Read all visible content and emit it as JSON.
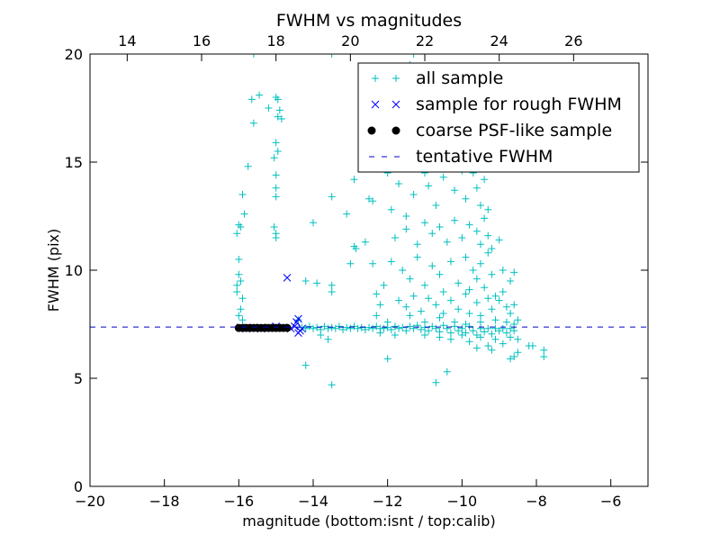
{
  "chart_data": {
    "type": "scatter",
    "title": "FWHM vs magnitudes",
    "xlabel": "magnitude (bottom:isnt / top:calib)",
    "ylabel": "FWHM (pix)",
    "xlim": [
      -20,
      -5
    ],
    "ylim": [
      0,
      20
    ],
    "top_xlim": [
      13,
      28
    ],
    "x_ticks": [
      -20,
      -18,
      -16,
      -14,
      -12,
      -10,
      -8,
      -6
    ],
    "x_tick_labels": [
      "−20",
      "−18",
      "−16",
      "−14",
      "−12",
      "−10",
      "−8",
      "−6"
    ],
    "top_x_ticks": [
      14,
      16,
      18,
      20,
      22,
      24,
      26
    ],
    "top_x_tick_labels": [
      "14",
      "16",
      "18",
      "20",
      "22",
      "24",
      "26"
    ],
    "y_ticks": [
      0,
      5,
      10,
      15,
      20
    ],
    "y_tick_labels": [
      "0",
      "5",
      "10",
      "15",
      "20"
    ],
    "grid": false,
    "legend_placement": "top-right",
    "colors": {
      "all": "#00bfbf",
      "rough": "#0000ff",
      "coarse": "#000000",
      "tentative": "#0000cc"
    },
    "series": [
      {
        "name": "all sample",
        "marker": "plus",
        "points": [
          [
            -16.0,
            12.1
          ],
          [
            -15.95,
            12.0
          ],
          [
            -16.05,
            11.7
          ],
          [
            -15.9,
            13.5
          ],
          [
            -15.85,
            12.6
          ],
          [
            -16.0,
            9.8
          ],
          [
            -15.95,
            9.5
          ],
          [
            -16.05,
            9.0
          ],
          [
            -15.9,
            8.7
          ],
          [
            -16.0,
            10.5
          ],
          [
            -15.95,
            8.2
          ],
          [
            -16.0,
            7.9
          ],
          [
            -15.9,
            7.7
          ],
          [
            -16.05,
            9.3
          ],
          [
            -15.75,
            14.8
          ],
          [
            -15.65,
            17.9
          ],
          [
            -15.6,
            16.8
          ],
          [
            -15.45,
            18.1
          ],
          [
            -15.2,
            17.5
          ],
          [
            -15.0,
            18.0
          ],
          [
            -14.95,
            17.9
          ],
          [
            -14.9,
            17.4
          ],
          [
            -14.95,
            17.1
          ],
          [
            -14.85,
            17.0
          ],
          [
            -15.0,
            15.9
          ],
          [
            -14.95,
            15.5
          ],
          [
            -15.05,
            15.2
          ],
          [
            -15.0,
            14.4
          ],
          [
            -15.0,
            13.8
          ],
          [
            -15.0,
            13.4
          ],
          [
            -15.05,
            12.0
          ],
          [
            -15.0,
            11.7
          ],
          [
            -15.0,
            11.5
          ],
          [
            -14.0,
            12.2
          ],
          [
            -14.2,
            9.5
          ],
          [
            -13.9,
            9.4
          ],
          [
            -13.5,
            9.3
          ],
          [
            -13.5,
            9.0
          ],
          [
            -14.4,
            7.7
          ],
          [
            -13.5,
            13.4
          ],
          [
            -12.9,
            14.2
          ],
          [
            -13.1,
            12.6
          ],
          [
            -12.5,
            13.3
          ],
          [
            -12.4,
            13.2
          ],
          [
            -12.9,
            11.1
          ],
          [
            -12.85,
            11.0
          ],
          [
            -13.0,
            10.3
          ],
          [
            -12.4,
            10.3
          ],
          [
            -12.6,
            11.3
          ],
          [
            -11.9,
            12.8
          ],
          [
            -12.1,
            9.3
          ],
          [
            -12.2,
            8.4
          ],
          [
            -12.3,
            8.9
          ],
          [
            -11.3,
            20.0
          ],
          [
            -11.4,
            19.5
          ],
          [
            -13.5,
            20.0
          ],
          [
            -15.6,
            20.0
          ],
          [
            -12.0,
            14.5
          ],
          [
            -11.5,
            15.6
          ],
          [
            -11.7,
            14.0
          ],
          [
            -11.5,
            12.5
          ],
          [
            -11.3,
            13.5
          ],
          [
            -11.0,
            14.5
          ],
          [
            -10.9,
            13.9
          ],
          [
            -10.7,
            13.0
          ],
          [
            -10.5,
            14.3
          ],
          [
            -10.3,
            15.0
          ],
          [
            -10.2,
            13.7
          ],
          [
            -10.0,
            14.6
          ],
          [
            -9.9,
            13.3
          ],
          [
            -9.7,
            14.5
          ],
          [
            -9.6,
            13.8
          ],
          [
            -9.5,
            13.0
          ],
          [
            -9.4,
            14.2
          ],
          [
            -9.3,
            12.8
          ],
          [
            -11.8,
            11.5
          ],
          [
            -11.5,
            11.9
          ],
          [
            -11.2,
            11.2
          ],
          [
            -11.0,
            12.2
          ],
          [
            -10.8,
            11.7
          ],
          [
            -10.6,
            12.0
          ],
          [
            -10.4,
            11.3
          ],
          [
            -10.2,
            12.3
          ],
          [
            -10.0,
            11.5
          ],
          [
            -9.8,
            12.1
          ],
          [
            -9.6,
            11.8
          ],
          [
            -9.5,
            11.2
          ],
          [
            -9.4,
            12.4
          ],
          [
            -9.3,
            11.6
          ],
          [
            -9.2,
            11.0
          ],
          [
            -9.0,
            11.4
          ],
          [
            -8.9,
            10.0
          ],
          [
            -8.7,
            9.5
          ],
          [
            -8.6,
            9.9
          ],
          [
            -11.9,
            10.4
          ],
          [
            -11.6,
            10.0
          ],
          [
            -11.4,
            9.6
          ],
          [
            -11.2,
            10.6
          ],
          [
            -11.0,
            9.3
          ],
          [
            -10.8,
            10.2
          ],
          [
            -10.6,
            9.8
          ],
          [
            -10.5,
            9.0
          ],
          [
            -10.3,
            10.4
          ],
          [
            -10.1,
            9.4
          ],
          [
            -9.9,
            10.6
          ],
          [
            -9.8,
            9.1
          ],
          [
            -9.7,
            10.0
          ],
          [
            -9.6,
            9.6
          ],
          [
            -9.5,
            10.3
          ],
          [
            -9.4,
            9.2
          ],
          [
            -9.3,
            10.8
          ],
          [
            -9.2,
            9.8
          ],
          [
            -9.1,
            8.8
          ],
          [
            -8.9,
            9.0
          ],
          [
            -11.7,
            8.6
          ],
          [
            -11.5,
            8.3
          ],
          [
            -11.3,
            8.8
          ],
          [
            -11.1,
            8.1
          ],
          [
            -10.9,
            8.7
          ],
          [
            -10.7,
            8.4
          ],
          [
            -10.5,
            8.0
          ],
          [
            -10.3,
            8.6
          ],
          [
            -10.1,
            8.2
          ],
          [
            -9.9,
            8.9
          ],
          [
            -9.8,
            8.0
          ],
          [
            -9.6,
            8.5
          ],
          [
            -9.5,
            7.9
          ],
          [
            -9.3,
            8.7
          ],
          [
            -9.2,
            8.2
          ],
          [
            -9.0,
            8.6
          ],
          [
            -8.8,
            8.3
          ],
          [
            -8.7,
            8.0
          ],
          [
            -8.6,
            8.4
          ],
          [
            -8.5,
            7.7
          ],
          [
            -12.3,
            7.9
          ],
          [
            -12.0,
            7.6
          ],
          [
            -11.4,
            7.9
          ],
          [
            -11.0,
            7.6
          ],
          [
            -10.6,
            7.8
          ],
          [
            -10.2,
            7.6
          ],
          [
            -9.9,
            7.5
          ],
          [
            -9.5,
            7.6
          ],
          [
            -9.1,
            7.7
          ],
          [
            -8.8,
            7.6
          ],
          [
            -8.6,
            7.5
          ],
          [
            -14.3,
            7.35
          ],
          [
            -14.2,
            7.3
          ],
          [
            -14.1,
            7.4
          ],
          [
            -14.0,
            7.3
          ],
          [
            -13.9,
            7.35
          ],
          [
            -13.8,
            7.25
          ],
          [
            -13.7,
            7.4
          ],
          [
            -13.6,
            7.3
          ],
          [
            -13.5,
            7.35
          ],
          [
            -13.4,
            7.3
          ],
          [
            -13.3,
            7.4
          ],
          [
            -13.2,
            7.25
          ],
          [
            -13.1,
            7.35
          ],
          [
            -13.0,
            7.3
          ],
          [
            -12.9,
            7.4
          ],
          [
            -12.8,
            7.3
          ],
          [
            -12.7,
            7.35
          ],
          [
            -12.6,
            7.25
          ],
          [
            -12.5,
            7.35
          ],
          [
            -12.4,
            7.3
          ],
          [
            -12.3,
            7.4
          ],
          [
            -12.2,
            7.3
          ],
          [
            -12.1,
            7.3
          ],
          [
            -12.0,
            7.35
          ],
          [
            -11.9,
            7.25
          ],
          [
            -11.8,
            7.4
          ],
          [
            -11.7,
            7.3
          ],
          [
            -11.6,
            7.35
          ],
          [
            -11.5,
            7.2
          ],
          [
            -11.4,
            7.4
          ],
          [
            -11.3,
            7.3
          ],
          [
            -11.2,
            7.45
          ],
          [
            -11.1,
            7.25
          ],
          [
            -11.0,
            7.35
          ],
          [
            -10.9,
            7.2
          ],
          [
            -10.8,
            7.4
          ],
          [
            -10.7,
            7.3
          ],
          [
            -10.6,
            7.15
          ],
          [
            -10.5,
            7.45
          ],
          [
            -10.4,
            7.3
          ],
          [
            -10.3,
            7.1
          ],
          [
            -10.2,
            7.4
          ],
          [
            -10.1,
            7.2
          ],
          [
            -10.0,
            7.3
          ],
          [
            -9.9,
            7.1
          ],
          [
            -9.8,
            7.4
          ],
          [
            -9.7,
            7.2
          ],
          [
            -9.6,
            7.0
          ],
          [
            -9.5,
            7.3
          ],
          [
            -9.4,
            7.15
          ],
          [
            -9.3,
            7.3
          ],
          [
            -9.2,
            7.05
          ],
          [
            -9.1,
            7.3
          ],
          [
            -9.0,
            7.2
          ],
          [
            -8.9,
            7.3
          ],
          [
            -8.8,
            7.1
          ],
          [
            -8.7,
            7.3
          ],
          [
            -8.6,
            7.2
          ],
          [
            -11.0,
            7.0
          ],
          [
            -10.6,
            6.9
          ],
          [
            -10.3,
            6.8
          ],
          [
            -10.0,
            7.0
          ],
          [
            -9.8,
            6.7
          ],
          [
            -9.5,
            6.9
          ],
          [
            -9.3,
            6.5
          ],
          [
            -9.1,
            6.8
          ],
          [
            -8.9,
            6.6
          ],
          [
            -8.7,
            6.9
          ],
          [
            -8.5,
            6.8
          ],
          [
            -9.6,
            6.4
          ],
          [
            -9.2,
            6.3
          ],
          [
            -13.8,
            7.0
          ],
          [
            -13.6,
            6.8
          ],
          [
            -12.2,
            7.1
          ],
          [
            -11.8,
            7.0
          ],
          [
            -14.2,
            5.6
          ],
          [
            -13.5,
            4.7
          ],
          [
            -12.0,
            5.9
          ],
          [
            -10.4,
            5.3
          ],
          [
            -10.7,
            4.8
          ],
          [
            -7.8,
            6.3
          ],
          [
            -7.8,
            6.0
          ],
          [
            -8.1,
            6.5
          ],
          [
            -8.2,
            6.5
          ],
          [
            -8.5,
            6.2
          ],
          [
            -8.7,
            5.9
          ],
          [
            -8.6,
            6.0
          ]
        ]
      },
      {
        "name": "sample for rough FWHM",
        "marker": "x",
        "points": [
          [
            -15.95,
            7.35
          ],
          [
            -15.8,
            7.3
          ],
          [
            -15.6,
            7.35
          ],
          [
            -15.4,
            7.3
          ],
          [
            -15.2,
            7.35
          ],
          [
            -15.0,
            7.4
          ],
          [
            -14.8,
            7.35
          ],
          [
            -14.6,
            7.3
          ],
          [
            -14.5,
            7.4
          ],
          [
            -14.45,
            7.6
          ],
          [
            -14.4,
            7.75
          ],
          [
            -14.35,
            7.2
          ],
          [
            -14.3,
            7.3
          ],
          [
            -14.4,
            7.1
          ],
          [
            -14.7,
            9.65
          ]
        ]
      },
      {
        "name": "coarse PSF-like sample",
        "marker": "dot",
        "points": [
          [
            -16.0,
            7.33
          ],
          [
            -15.9,
            7.33
          ],
          [
            -15.8,
            7.33
          ],
          [
            -15.7,
            7.33
          ],
          [
            -15.6,
            7.33
          ],
          [
            -15.5,
            7.33
          ],
          [
            -15.4,
            7.33
          ],
          [
            -15.3,
            7.33
          ],
          [
            -15.2,
            7.33
          ],
          [
            -15.1,
            7.33
          ],
          [
            -15.0,
            7.33
          ],
          [
            -14.9,
            7.33
          ],
          [
            -14.8,
            7.33
          ],
          [
            -14.7,
            7.33
          ]
        ]
      },
      {
        "name": "tentative FWHM",
        "marker": "dashed-line",
        "value": 7.37
      }
    ]
  }
}
